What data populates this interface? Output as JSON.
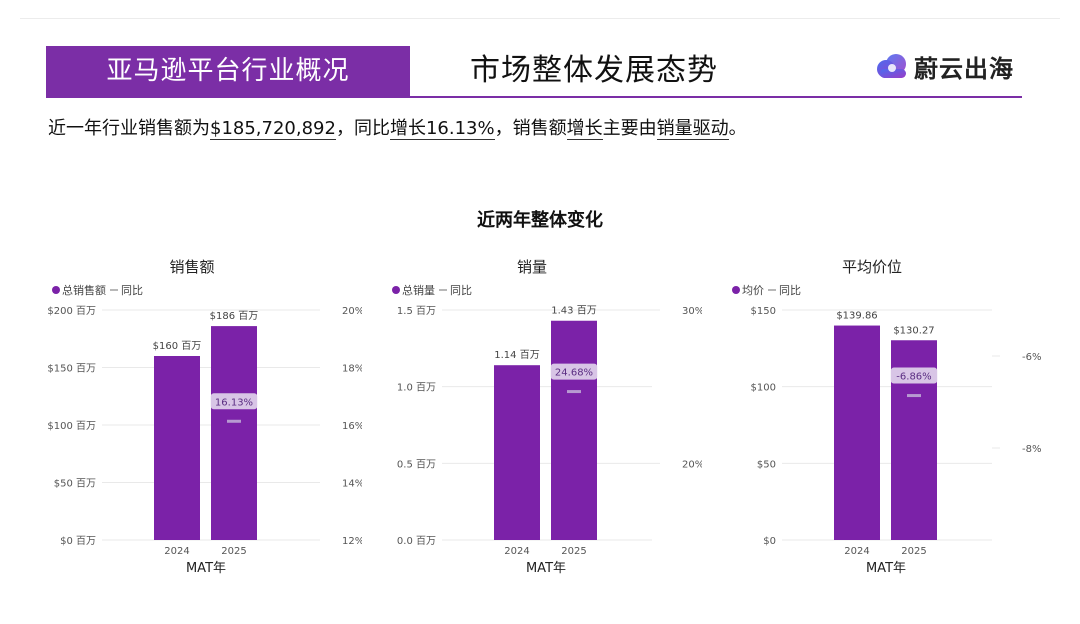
{
  "header": {
    "banner": "亚马逊平台行业概况",
    "title": "市场整体发展态势",
    "brand": "蔚云出海"
  },
  "summary": {
    "p1": "近一年行业销售额为",
    "amount": "$185,720,892",
    "p2": "，同比",
    "growth_word": "增长16.13%",
    "p3": "，销售额",
    "sales_growth": "增长",
    "p4": "主要由",
    "volume_driver": "销量驱动",
    "p5": "。"
  },
  "charts_title": "近两年整体变化",
  "colors": {
    "brand": "#7b2ea6",
    "bar": "#7b22a8",
    "pct_box": "#d8c5e6",
    "pct_mark": "#b79ad1",
    "grid": "#e9e9e9"
  },
  "chart_data": [
    {
      "id": "sales",
      "type": "bar",
      "title": "销售额",
      "legend": [
        "总销售额",
        "同比"
      ],
      "categories": [
        "2024",
        "2025"
      ],
      "values": [
        160,
        186
      ],
      "bar_labels": [
        "$160 百万",
        "$186 百万"
      ],
      "yoy": [
        null,
        16.13
      ],
      "yoy_labels": [
        "",
        "16.13%"
      ],
      "xlabel": "MAT年",
      "ylim": [
        0,
        200
      ],
      "yticks": [
        0,
        50,
        100,
        150,
        200
      ],
      "ytick_labels": [
        "$0 百万",
        "$50 百万",
        "$100 百万",
        "$150 百万",
        "$200 百万"
      ],
      "y2lim": [
        12,
        20
      ],
      "y2ticks": [
        12,
        14,
        16,
        18,
        20
      ],
      "y2tick_labels": [
        "12%",
        "14%",
        "16%",
        "18%",
        "20%"
      ]
    },
    {
      "id": "units",
      "type": "bar",
      "title": "销量",
      "legend": [
        "总销量",
        "同比"
      ],
      "categories": [
        "2024",
        "2025"
      ],
      "values": [
        1.14,
        1.43
      ],
      "bar_labels": [
        "1.14 百万",
        "1.43 百万"
      ],
      "yoy": [
        null,
        24.68
      ],
      "yoy_labels": [
        "",
        "24.68%"
      ],
      "xlabel": "MAT年",
      "ylim": [
        0,
        1.5
      ],
      "yticks": [
        0,
        0.5,
        1.0,
        1.5
      ],
      "ytick_labels": [
        "0.0 百万",
        "0.5 百万",
        "1.0 百万",
        "1.5 百万"
      ],
      "y2lim": [
        15,
        30
      ],
      "y2ticks": [
        20,
        30
      ],
      "y2tick_labels": [
        "20%",
        "30%"
      ]
    },
    {
      "id": "price",
      "type": "bar",
      "title": "平均价位",
      "legend": [
        "均价",
        "同比"
      ],
      "categories": [
        "2024",
        "2025"
      ],
      "values": [
        139.86,
        130.27
      ],
      "bar_labels": [
        "$139.86",
        "$130.27"
      ],
      "yoy": [
        null,
        -6.86
      ],
      "yoy_labels": [
        "",
        "-6.86%"
      ],
      "xlabel": "MAT年",
      "ylim": [
        0,
        150
      ],
      "yticks": [
        0,
        50,
        100,
        150
      ],
      "ytick_labels": [
        "$0",
        "$50",
        "$100",
        "$150"
      ],
      "y2lim": [
        -10,
        -5
      ],
      "y2ticks": [
        -6,
        -8
      ],
      "y2tick_labels": [
        "-6%",
        "-8%"
      ]
    }
  ]
}
